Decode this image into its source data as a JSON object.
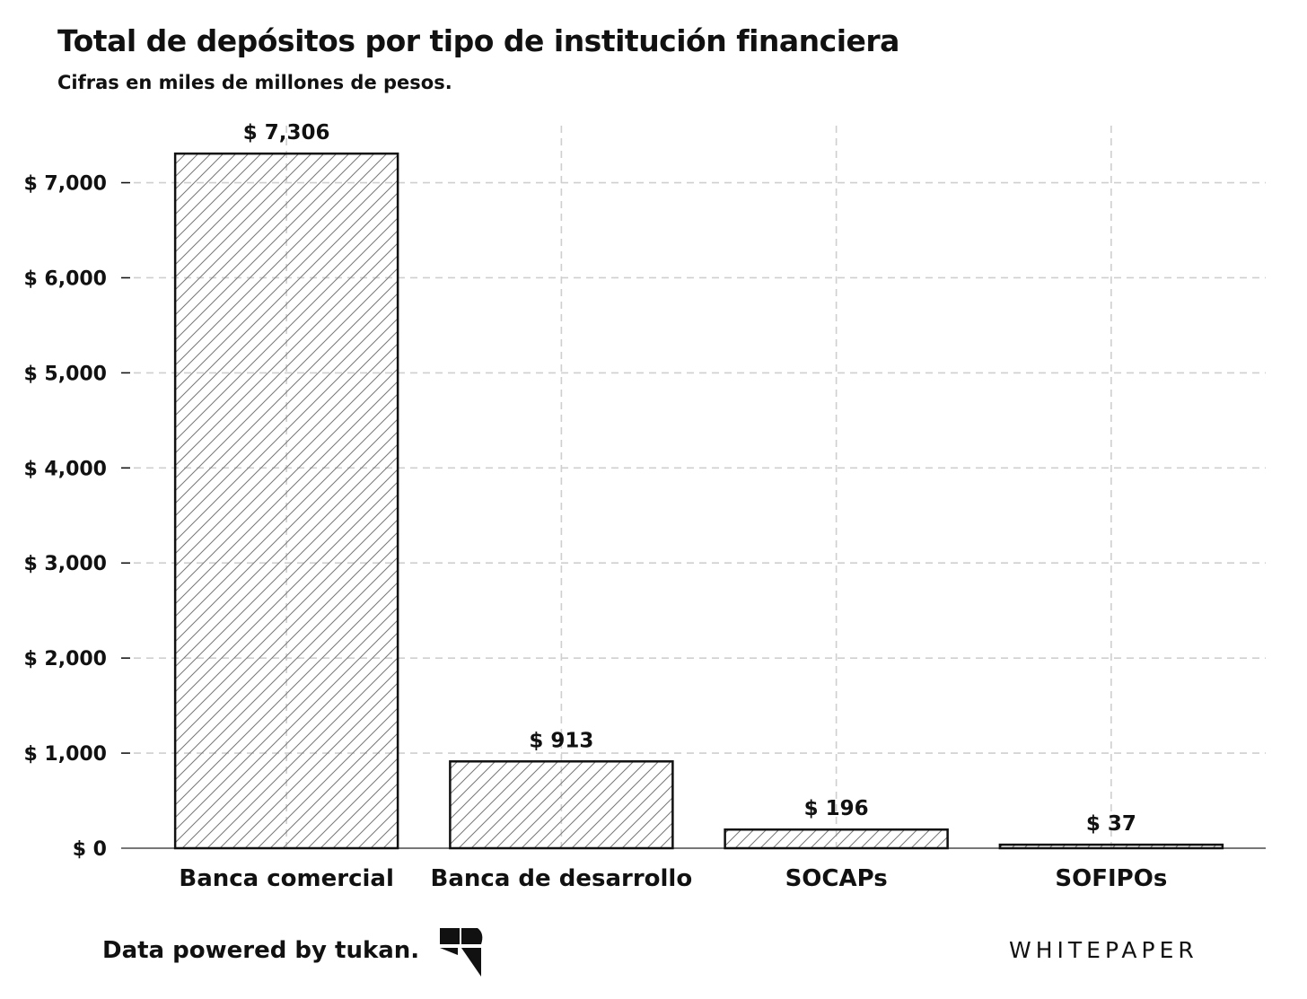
{
  "chart_data": {
    "type": "bar",
    "title": "Total de depósitos por tipo de institución financiera",
    "subtitle": "Cifras en miles de millones de pesos.",
    "categories": [
      "Banca comercial",
      "Banca de desarrollo",
      "SOCAPs",
      "SOFIPOs"
    ],
    "values": [
      7306,
      913,
      196,
      37
    ],
    "data_labels": [
      "$ 7,306",
      "$ 913",
      "$ 196",
      "$ 37"
    ],
    "ylim": [
      0,
      7600
    ],
    "yticks": [
      0,
      1000,
      2000,
      3000,
      4000,
      5000,
      6000,
      7000
    ],
    "ytick_labels": [
      "$ 0",
      "$ 1,000",
      "$ 2,000",
      "$ 3,000",
      "$ 4,000",
      "$ 5,000",
      "$ 6,000",
      "$ 7,000"
    ],
    "xlabel": "",
    "ylabel": "",
    "grid": true,
    "bar_fill": "hatched",
    "bar_color": "#111111",
    "grid_color": "#cfcfcf"
  },
  "footer": {
    "credit": "Data powered by tukan.",
    "brand": "WHITEPAPER"
  }
}
